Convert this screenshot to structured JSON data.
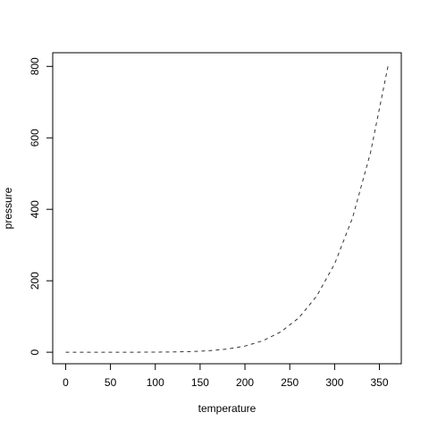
{
  "chart_data": {
    "type": "line",
    "x_label": "temperature",
    "y_label": "pressure",
    "x": [
      0,
      20,
      40,
      60,
      80,
      100,
      120,
      140,
      160,
      180,
      200,
      220,
      240,
      260,
      280,
      300,
      320,
      340,
      360
    ],
    "values": [
      0.0002,
      0.0012,
      0.006,
      0.03,
      0.09,
      0.27,
      0.75,
      1.85,
      4.2,
      8.8,
      17.3,
      32.1,
      57,
      96,
      157,
      247,
      376,
      558,
      806
    ],
    "color": "#333333",
    "line_style": "dashed",
    "xlim": [
      -14.4,
      374.4
    ],
    "ylim": [
      -32.24,
      838.24
    ],
    "xticks": [
      0,
      50,
      100,
      150,
      200,
      250,
      300,
      350
    ],
    "yticks": [
      0,
      200,
      400,
      600,
      800
    ]
  }
}
